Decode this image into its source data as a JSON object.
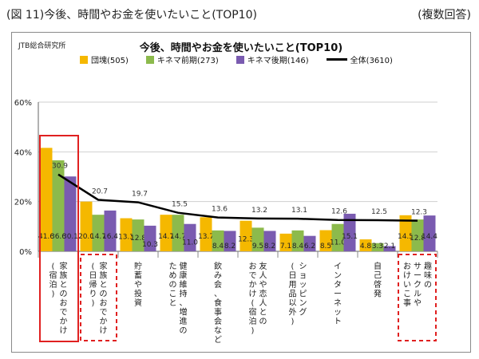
{
  "header": {
    "left": "(図 11)今後、時間やお金を使いたいこと(TOP10)",
    "right": "(複数回答)"
  },
  "chart_meta": {
    "source": "JTB総合研究所"
  },
  "colors": {
    "dankai": "#f5b800",
    "kinema_early": "#8cba4c",
    "kinema_late": "#7a5bb0",
    "total": "#000000",
    "highlight_box": "#e02020"
  },
  "chart_data": {
    "type": "bar",
    "title": "今後、時間やお金を使いたいこと(TOP10)",
    "ylim": [
      0,
      60
    ],
    "yticks": [
      "0%",
      "20%",
      "40%",
      "60%"
    ],
    "categories": [
      "家族とのおでかけ(宿泊)",
      "家族とのおでかけ(日帰り)",
      "貯蓄や投資",
      "健康維持、増進のためのこと",
      "飲み会、食事会など",
      "友人や恋人とのおでかけ(宿泊)",
      "ショッピング(日用品以外)",
      "インターネット",
      "自己啓発",
      "趣味のサークルやおけいこ事"
    ],
    "series": [
      {
        "name": "団塊(505)",
        "type": "bar",
        "values": [
          41.6,
          20.0,
          13.3,
          14.7,
          13.7,
          12.3,
          7.1,
          8.5,
          4.8,
          14.5
        ]
      },
      {
        "name": "キネマ前期(273)",
        "type": "bar",
        "values": [
          36.6,
          14.7,
          12.8,
          14.7,
          8.4,
          9.5,
          8.4,
          11.0,
          3.3,
          12.8
        ]
      },
      {
        "name": "キネマ後期(146)",
        "type": "bar",
        "values": [
          30.1,
          16.4,
          10.3,
          11.0,
          8.2,
          8.2,
          6.2,
          15.1,
          2.1,
          14.4
        ]
      },
      {
        "name": "全体(3610)",
        "type": "line",
        "values": [
          30.9,
          20.7,
          19.7,
          15.5,
          13.6,
          13.2,
          13.1,
          12.6,
          12.5,
          12.3
        ]
      }
    ],
    "highlighted_categories": [
      "家族とのおでかけ(宿泊)",
      "家族とのおでかけ(日帰り)",
      "趣味のサークルやおけいこ事"
    ]
  },
  "category_labels": [
    "家族とのおでかけ\n(宿泊)",
    "家族とのおでかけ\n(日帰り)",
    "貯蓄や投資",
    "健康維持、増進の\nためのこと",
    "飲み会、食事会など",
    "友人や恋人との\nおでかけ(宿泊)",
    "ショッピング\n(日用品以外)",
    "インターネット",
    "自己啓発",
    "趣味の\nサークルや\nおけいこ事"
  ],
  "bar_label_text": {
    "dankai": [
      "41.6",
      "20.0",
      "13.3",
      "14.7",
      "13.7",
      "12.3",
      "7.1",
      "8.5",
      "4.8",
      "14.5"
    ],
    "kinema_early": [
      "36.6",
      "14.7",
      "12.8",
      "14.7",
      "8.4",
      "9.5",
      "8.4",
      "11.0",
      "3.3",
      "12.8"
    ],
    "kinema_late": [
      "30.1",
      "16.4",
      "10.3",
      "11.0",
      "8.2",
      "8.2",
      "6.2",
      "15.1",
      "2.1",
      "14.4"
    ],
    "total": [
      "30.9",
      "20.7",
      "19.7",
      "15.5",
      "13.6",
      "13.2",
      "13.1",
      "12.6",
      "12.5",
      "12.3"
    ]
  }
}
